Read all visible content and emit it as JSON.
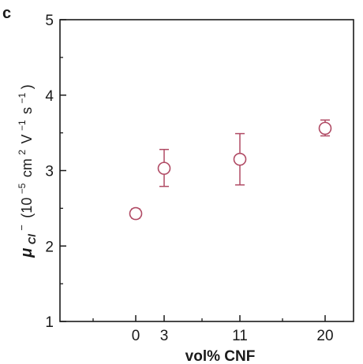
{
  "panel_label": "c",
  "chart_data": {
    "type": "scatter",
    "title": "",
    "xlabel": "vol% CNF",
    "ylabel": {
      "symbol": "μ",
      "subscript": "Cl",
      "superscript": "−",
      "open": "(10",
      "exp1": "−5",
      "cm": "cm",
      "exp2": "2",
      "v": "V",
      "exp3": "−1",
      "s": "s",
      "exp4": "−1",
      "close": ")"
    },
    "xlim": [
      -8,
      23
    ],
    "ylim": [
      1,
      5
    ],
    "x_ticks": [
      0,
      3,
      11,
      20
    ],
    "x_tick_labels": [
      "0",
      "3",
      "11",
      "20"
    ],
    "x_minor_ticks": [
      -4.5,
      7,
      15.5
    ],
    "y_ticks": [
      1,
      2,
      3,
      4,
      5
    ],
    "y_tick_labels": [
      "1",
      "2",
      "3",
      "4",
      "5"
    ],
    "y_minor_ticks": [
      1.5,
      2.5,
      3.5,
      4.5
    ],
    "marker_color": "#b04a64",
    "axis_color": "#1a1a1a",
    "points": [
      {
        "x": 0,
        "y": 2.43,
        "err_low": 2.37,
        "err_high": 2.49
      },
      {
        "x": 3,
        "y": 3.03,
        "err_low": 2.79,
        "err_high": 3.28
      },
      {
        "x": 11,
        "y": 3.15,
        "err_low": 2.81,
        "err_high": 3.49
      },
      {
        "x": 20,
        "y": 3.56,
        "err_low": 3.46,
        "err_high": 3.67
      }
    ]
  }
}
